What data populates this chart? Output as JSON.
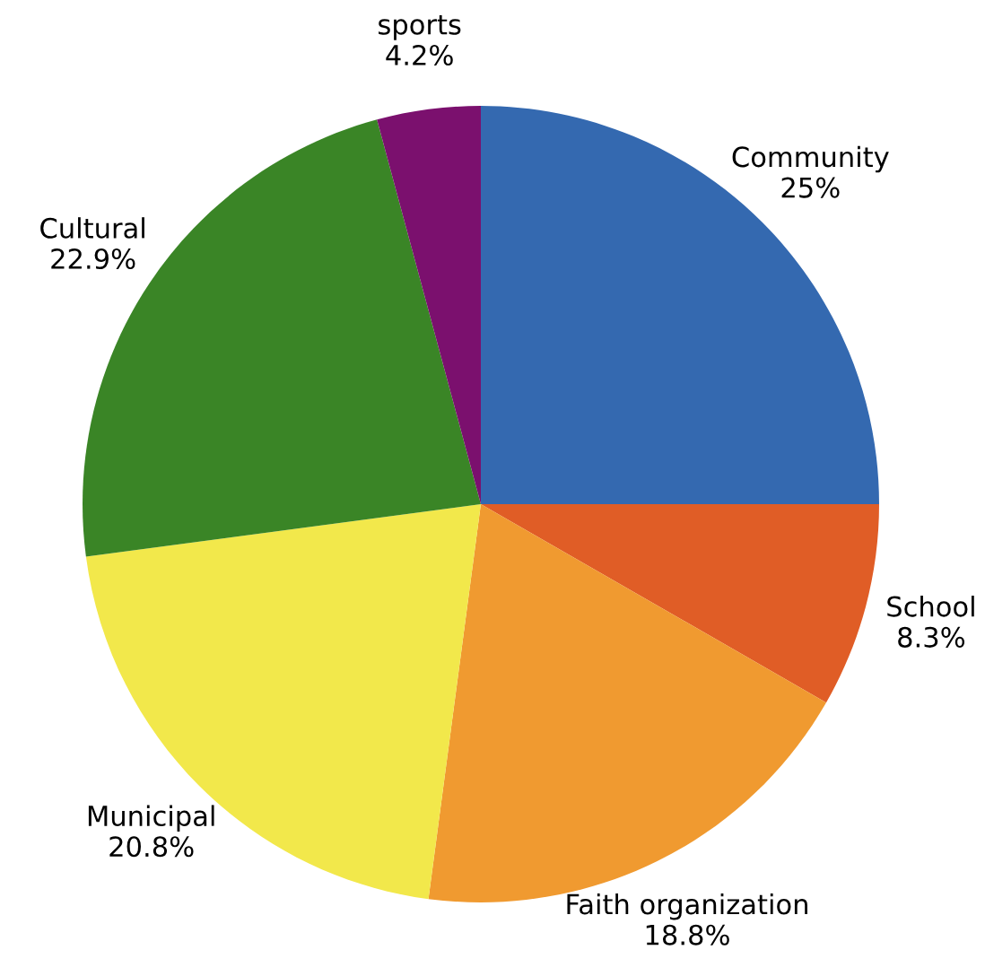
{
  "chart_data": {
    "type": "pie",
    "categories": [
      "Community",
      "School",
      "Faith organization",
      "Municipal",
      "Cultural",
      "sports"
    ],
    "values": [
      25,
      8.3,
      18.8,
      20.8,
      22.9,
      4.2
    ],
    "value_labels": [
      "25%",
      "8.3%",
      "18.8%",
      "20.8%",
      "22.9%",
      "4.2%"
    ],
    "colors": [
      "#3469b0",
      "#e05d26",
      "#f09a30",
      "#f2e84b",
      "#3a8526",
      "#7b106e"
    ]
  }
}
